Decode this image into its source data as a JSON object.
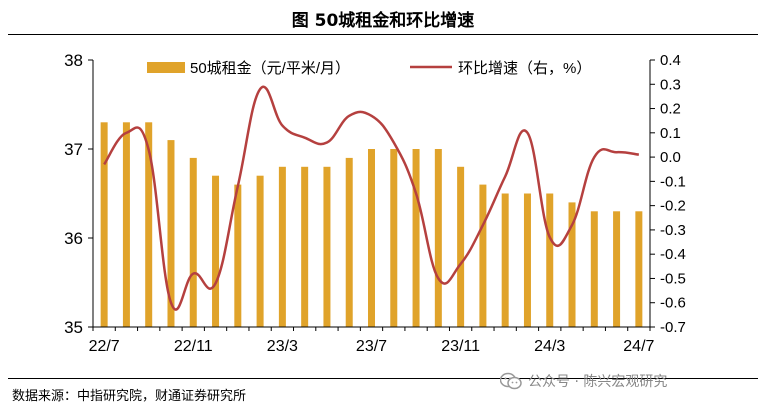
{
  "figure": {
    "title": "图  50城租金和环比增速",
    "source": "数据来源：中指研究院，财通证券研究所",
    "watermark": "公众号 · 陈兴宏观研究",
    "watermark_icon": "wechat-icon"
  },
  "colors": {
    "bar": "#E0A32A",
    "line": "#B5403F",
    "axis": "#000000"
  },
  "chart_data": {
    "type": "bar+line",
    "title": "50城租金和环比增速",
    "categories": [
      "22/7",
      "22/8",
      "22/9",
      "22/10",
      "22/11",
      "22/12",
      "23/1",
      "23/2",
      "23/3",
      "23/4",
      "23/5",
      "23/6",
      "23/7",
      "23/8",
      "23/9",
      "23/10",
      "23/11",
      "23/12",
      "24/1",
      "24/2",
      "24/3",
      "24/4",
      "24/5",
      "24/6",
      "24/7"
    ],
    "x_tick_labels": [
      "22/7",
      "22/11",
      "23/3",
      "23/7",
      "23/11",
      "24/3",
      "24/7"
    ],
    "x_tick_indices": [
      0,
      4,
      8,
      12,
      16,
      20,
      24
    ],
    "series": [
      {
        "name": "50城租金（元/平米/月）",
        "type": "bar",
        "axis": "left",
        "values": [
          37.3,
          37.3,
          37.3,
          37.1,
          36.9,
          36.7,
          36.6,
          36.7,
          36.8,
          36.8,
          36.8,
          36.9,
          37.0,
          37.0,
          37.0,
          37.0,
          36.8,
          36.6,
          36.5,
          36.5,
          36.5,
          36.4,
          36.3,
          36.3,
          36.3
        ]
      },
      {
        "name": "环比增速（右，%）",
        "type": "line",
        "axis": "right",
        "values": [
          -0.03,
          0.1,
          0.03,
          -0.6,
          -0.48,
          -0.52,
          -0.12,
          0.28,
          0.13,
          0.08,
          0.06,
          0.17,
          0.17,
          0.06,
          -0.15,
          -0.5,
          -0.44,
          -0.28,
          -0.08,
          0.1,
          -0.33,
          -0.28,
          0.0,
          0.02,
          0.01
        ]
      }
    ],
    "y_left": {
      "min": 35,
      "max": 38,
      "ticks": [
        "35",
        "36",
        "37",
        "38"
      ]
    },
    "y_right": {
      "min": -0.7,
      "max": 0.4,
      "ticks": [
        "-0.7",
        "-0.6",
        "-0.5",
        "-0.4",
        "-0.3",
        "-0.2",
        "-0.1",
        "0.0",
        "0.1",
        "0.2",
        "0.3",
        "0.4"
      ]
    },
    "legend_position": "top"
  }
}
